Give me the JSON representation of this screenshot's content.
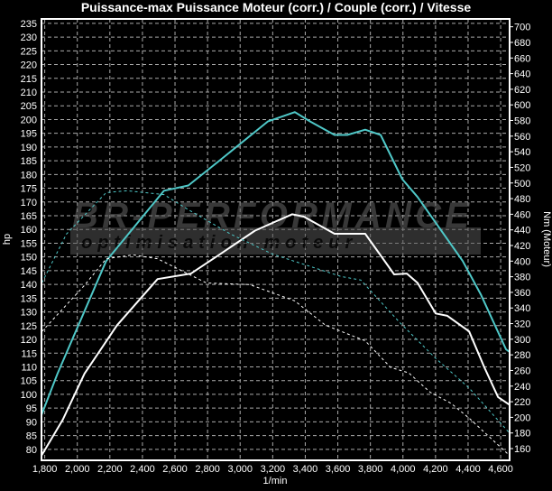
{
  "chart_data": {
    "type": "line",
    "title": "Puissance-max Puissance Moteur (corr.) / Couple (corr.) / Vitesse",
    "xlabel": "1/min",
    "ylabel_left": "hp",
    "ylabel_right": "Nm (Moteur)",
    "xlim": [
      1780,
      4655
    ],
    "ylim_left": [
      76,
      236.6
    ],
    "ylim_right": [
      145,
      710
    ],
    "x_ticks": [
      1800,
      2000,
      2200,
      2400,
      2600,
      2800,
      3000,
      3200,
      3400,
      3600,
      3800,
      4000,
      4200,
      4400,
      4600
    ],
    "x_tick_labels": [
      "1,800",
      "2,000",
      "2,200",
      "2,400",
      "2,600",
      "2,800",
      "3,000",
      "3,200",
      "3,400",
      "3,600",
      "3,800",
      "4,000",
      "4,200",
      "4,400",
      "4,600"
    ],
    "y_left_ticks": [
      80,
      85,
      90,
      95,
      100,
      105,
      110,
      115,
      120,
      125,
      130,
      135,
      140,
      145,
      150,
      155,
      160,
      165,
      170,
      175,
      180,
      185,
      190,
      195,
      200,
      205,
      210,
      215,
      220,
      225,
      230,
      235
    ],
    "y_right_ticks": [
      160,
      180,
      200,
      220,
      240,
      260,
      280,
      300,
      320,
      340,
      360,
      380,
      400,
      420,
      440,
      460,
      480,
      500,
      520,
      540,
      560,
      580,
      600,
      620,
      640,
      660,
      680,
      700
    ],
    "grid": true,
    "background": "#000000",
    "series": [
      {
        "axis": "left",
        "color": "#4fc8c8",
        "style": "solid",
        "points": [
          [
            1780,
            92.5
          ],
          [
            1878,
            107.5
          ],
          [
            2177,
            148.5
          ],
          [
            2532,
            174.1
          ],
          [
            2682,
            176.0
          ],
          [
            2870,
            184.9
          ],
          [
            3170,
            199.3
          ],
          [
            3336,
            202.7
          ],
          [
            3430,
            199.3
          ],
          [
            3580,
            194.4
          ],
          [
            3658,
            194.4
          ],
          [
            3768,
            196.3
          ],
          [
            3863,
            194.4
          ],
          [
            3996,
            178.3
          ],
          [
            4090,
            171.8
          ],
          [
            4184,
            163.9
          ],
          [
            4367,
            148.5
          ],
          [
            4478,
            136.4
          ],
          [
            4633,
            116.4
          ],
          [
            4655,
            115.4
          ]
        ]
      },
      {
        "axis": "right",
        "color": "#ffffff",
        "style": "solid",
        "points": [
          [
            1780,
            151
          ],
          [
            1911,
            197
          ],
          [
            2044,
            256
          ],
          [
            2244,
            318
          ],
          [
            2493,
            377
          ],
          [
            2698,
            384
          ],
          [
            2870,
            408
          ],
          [
            3092,
            439
          ],
          [
            3319,
            460
          ],
          [
            3391,
            457
          ],
          [
            3580,
            435
          ],
          [
            3768,
            435
          ],
          [
            3946,
            383
          ],
          [
            4024,
            384
          ],
          [
            4090,
            372
          ],
          [
            4201,
            333
          ],
          [
            4273,
            330
          ],
          [
            4406,
            310
          ],
          [
            4500,
            264
          ],
          [
            4584,
            226
          ],
          [
            4655,
            216
          ]
        ]
      },
      {
        "axis": "left",
        "color": "#4fc8c8",
        "style": "dashed",
        "points": [
          [
            1783,
            140.6
          ],
          [
            1933,
            158.3
          ],
          [
            2177,
            173.4
          ],
          [
            2305,
            174.1
          ],
          [
            2532,
            172.7
          ],
          [
            2682,
            167.2
          ],
          [
            2942,
            158.3
          ],
          [
            3200,
            151
          ],
          [
            3619,
            142.9
          ],
          [
            3741,
            141.6
          ],
          [
            3979,
            126.2
          ],
          [
            4201,
            113.1
          ],
          [
            4406,
            102.3
          ],
          [
            4655,
            85.9
          ]
        ]
      },
      {
        "axis": "right",
        "color": "#ffffff",
        "style": "dashed",
        "points": [
          [
            1783,
            310
          ],
          [
            2044,
            369
          ],
          [
            2177,
            403
          ],
          [
            2343,
            408
          ],
          [
            2493,
            403
          ],
          [
            2793,
            372
          ],
          [
            3059,
            370
          ],
          [
            3336,
            349
          ],
          [
            3524,
            318
          ],
          [
            3768,
            298
          ],
          [
            3924,
            264
          ],
          [
            4035,
            257
          ],
          [
            4168,
            232
          ],
          [
            4295,
            218
          ],
          [
            4406,
            199
          ],
          [
            4645,
            153
          ]
        ]
      }
    ]
  },
  "watermark": {
    "brand": "BR-PERFORMANCE",
    "tagline": "optimisation moteur"
  }
}
